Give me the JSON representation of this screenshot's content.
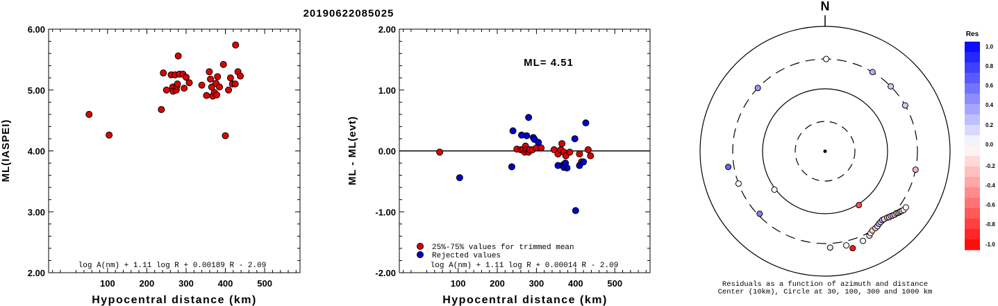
{
  "header": {
    "title": "20190622085025"
  },
  "chart_data": [
    {
      "type": "scatter",
      "ylabel": "ML(IASPEI)",
      "xlabel": "Hypocentral distance (km)",
      "xlim": [
        -50,
        590
      ],
      "ylim": [
        2.0,
        6.0
      ],
      "x_ticks": [
        "100",
        "200",
        "300",
        "400",
        "500"
      ],
      "y_ticks": [
        "2.00",
        "3.00",
        "4.00",
        "5.00",
        "6.00"
      ],
      "formula": "log A(nm) + 1.11 log R + 0.00189 R - 2.09",
      "series": [
        {
          "color": "#dd0000",
          "points": [
            [
              53,
              4.6
            ],
            [
              104,
              4.26
            ],
            [
              237,
              4.68
            ],
            [
              242,
              5.28
            ],
            [
              250,
              5.0
            ],
            [
              262,
              5.25
            ],
            [
              266,
              5.05
            ],
            [
              267,
              4.98
            ],
            [
              272,
              5.25
            ],
            [
              275,
              5.0
            ],
            [
              276,
              5.06
            ],
            [
              278,
              5.1
            ],
            [
              280,
              5.56
            ],
            [
              283,
              5.26
            ],
            [
              292,
              5.26
            ],
            [
              295,
              5.03
            ],
            [
              300,
              5.21
            ],
            [
              308,
              5.12
            ],
            [
              340,
              5.08
            ],
            [
              352,
              4.91
            ],
            [
              359,
              5.3
            ],
            [
              362,
              5.18
            ],
            [
              365,
              5.05
            ],
            [
              368,
              4.9
            ],
            [
              372,
              4.96
            ],
            [
              376,
              5.11
            ],
            [
              378,
              4.92
            ],
            [
              380,
              5.22
            ],
            [
              385,
              5.05
            ],
            [
              395,
              5.42
            ],
            [
              400,
              4.25
            ],
            [
              408,
              5.0
            ],
            [
              413,
              5.2
            ],
            [
              418,
              5.1
            ],
            [
              425,
              5.1
            ],
            [
              426,
              5.74
            ],
            [
              432,
              5.3
            ],
            [
              438,
              5.23
            ]
          ]
        }
      ]
    },
    {
      "type": "scatter",
      "ylabel": "ML - ML(evt)",
      "xlabel": "Hypocentral distance (km)",
      "xlim": [
        -50,
        590
      ],
      "ylim": [
        -2.0,
        2.0
      ],
      "x_ticks": [
        "100",
        "200",
        "300",
        "400",
        "500"
      ],
      "y_ticks": [
        "-2.00",
        "-1.00",
        "0.00",
        "1.00",
        "2.00"
      ],
      "annotation": "ML= 4.51",
      "formula": "log A(nm) + 1.11 log R + 0.00014 R - 2.09",
      "legend": [
        {
          "label": "25%-75% values for trimmed mean",
          "color": "#dd0000"
        },
        {
          "label": "Rejected values",
          "color": "#0000cc"
        }
      ],
      "series": [
        {
          "name": "25%-75% values for trimmed mean",
          "color": "#dd0000",
          "points": [
            [
              53,
              -0.02
            ],
            [
              250,
              0.03
            ],
            [
              260,
              0.02
            ],
            [
              265,
              0.02
            ],
            [
              270,
              -0.02
            ],
            [
              272,
              0.08
            ],
            [
              275,
              0.02
            ],
            [
              280,
              -0.02
            ],
            [
              283,
              0.02
            ],
            [
              290,
              0.02
            ],
            [
              300,
              0.05
            ],
            [
              312,
              0.05
            ],
            [
              345,
              0.02
            ],
            [
              355,
              -0.05
            ],
            [
              362,
              0.02
            ],
            [
              365,
              0.12
            ],
            [
              370,
              -0.02
            ],
            [
              375,
              -0.08
            ],
            [
              385,
              -0.02
            ],
            [
              410,
              -0.05
            ],
            [
              415,
              -0.18
            ],
            [
              432,
              0.02
            ],
            [
              438,
              -0.08
            ]
          ]
        },
        {
          "name": "Rejected values",
          "color": "#0000cc",
          "points": [
            [
              104,
              -0.44
            ],
            [
              237,
              -0.26
            ],
            [
              240,
              0.33
            ],
            [
              262,
              0.26
            ],
            [
              275,
              0.25
            ],
            [
              280,
              0.55
            ],
            [
              292,
              0.22
            ],
            [
              295,
              0.19
            ],
            [
              305,
              0.14
            ],
            [
              355,
              -0.24
            ],
            [
              368,
              -0.23
            ],
            [
              370,
              -0.27
            ],
            [
              374,
              -0.2
            ],
            [
              378,
              -0.28
            ],
            [
              398,
              0.2
            ],
            [
              400,
              -0.98
            ],
            [
              410,
              -0.24
            ],
            [
              420,
              -0.18
            ],
            [
              426,
              0.46
            ]
          ]
        }
      ]
    },
    {
      "type": "scatter",
      "subtype": "polar",
      "north_label": "N",
      "caption_line1": "Residuals as a function of azimuth and distance",
      "caption_line2": "Center (10km), Circle at 30, 100, 300 and 1000 km",
      "colorbar": {
        "label": "Res",
        "range": [
          -1.0,
          1.0
        ],
        "ticks": [
          "1.0",
          "0.8",
          "0.6",
          "0.4",
          "0.2",
          "0.0",
          "-0.2",
          "-0.4",
          "-0.6",
          "-0.8",
          "-1.0"
        ],
        "negative_color": "#ff0000",
        "zero_color": "#ffffff",
        "positive_color": "#0000ff"
      },
      "rings_km": [
        30,
        100,
        300,
        1000
      ],
      "stations": [
        {
          "azimuth": 0.7,
          "distance_km": 300,
          "residual": 0.0
        },
        {
          "azimuth": 30.9,
          "distance_km": 300,
          "residual": 0.3
        },
        {
          "azimuth": 45.3,
          "distance_km": 300,
          "residual": 0.2
        },
        {
          "azimuth": 60.2,
          "distance_km": 300,
          "residual": 0.2
        },
        {
          "azimuth": 101.5,
          "distance_km": 300,
          "residual": -0.3
        },
        {
          "azimuth": 313.3,
          "distance_km": 300,
          "residual": 0.4
        },
        {
          "azimuth": 260.8,
          "distance_km": 370,
          "residual": 0.6
        },
        {
          "azimuth": 249.5,
          "distance_km": 300,
          "residual": 0.0
        },
        {
          "azimuth": 226.3,
          "distance_km": 280,
          "residual": 0.5
        },
        {
          "azimuth": 232.8,
          "distance_km": 104,
          "residual": 0.0
        },
        {
          "azimuth": 147.9,
          "distance_km": 104,
          "residual": -0.7
        },
        {
          "azimuth": 177.0,
          "distance_km": 350,
          "residual": -0.1
        },
        {
          "azimuth": 167.3,
          "distance_km": 350,
          "residual": 0.0
        },
        {
          "azimuth": 164.1,
          "distance_km": 410,
          "residual": -0.9
        },
        {
          "azimuth": 157.1,
          "distance_km": 360,
          "residual": 0.0
        },
        {
          "azimuth": 152.3,
          "distance_km": 335,
          "residual": -0.1
        },
        {
          "azimuth": 150.9,
          "distance_km": 315,
          "residual": 0.0
        },
        {
          "azimuth": 149.2,
          "distance_km": 300,
          "residual": -0.2
        },
        {
          "azimuth": 146.7,
          "distance_km": 295,
          "residual": -0.2
        },
        {
          "azimuth": 145.0,
          "distance_km": 290,
          "residual": -0.1
        },
        {
          "azimuth": 143.5,
          "distance_km": 280,
          "residual": 0.3
        },
        {
          "azimuth": 141.9,
          "distance_km": 275,
          "residual": 0.2
        },
        {
          "azimuth": 140.3,
          "distance_km": 270,
          "residual": 0.3
        },
        {
          "azimuth": 139.0,
          "distance_km": 275,
          "residual": -0.2
        },
        {
          "azimuth": 136.9,
          "distance_km": 285,
          "residual": 0.2
        },
        {
          "azimuth": 135.9,
          "distance_km": 295,
          "residual": -0.3
        },
        {
          "azimuth": 134.5,
          "distance_km": 300,
          "residual": 0.0
        },
        {
          "azimuth": 133.6,
          "distance_km": 310,
          "residual": 0.3
        },
        {
          "azimuth": 132.4,
          "distance_km": 320,
          "residual": -0.2
        },
        {
          "azimuth": 131.1,
          "distance_km": 325,
          "residual": -0.1
        },
        {
          "azimuth": 130.3,
          "distance_km": 335,
          "residual": 0.1
        },
        {
          "azimuth": 129.4,
          "distance_km": 345,
          "residual": -0.2
        },
        {
          "azimuth": 128.5,
          "distance_km": 350,
          "residual": -0.1
        },
        {
          "azimuth": 127.8,
          "distance_km": 360,
          "residual": 0.0
        },
        {
          "azimuth": 126.8,
          "distance_km": 370,
          "residual": -0.1
        },
        {
          "azimuth": 124.8,
          "distance_km": 375,
          "residual": 0.0
        }
      ]
    }
  ]
}
